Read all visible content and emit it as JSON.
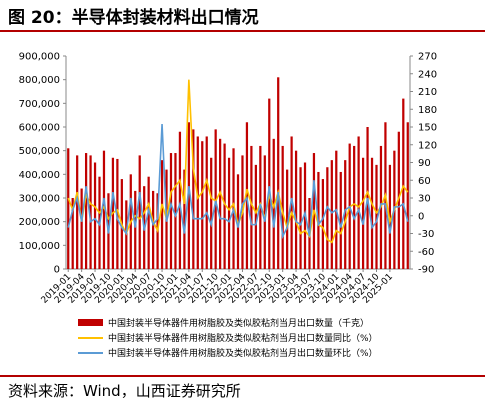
{
  "figure": {
    "title": "图 20：半导体封装材料出口情况",
    "source": "资料来源：Wind，山西证券研究所"
  },
  "colors": {
    "bar": "#c00000",
    "yoy": "#ffc000",
    "mom": "#5b9bd5",
    "rule": "#b30000"
  },
  "chart_data": {
    "type": "bar",
    "grid": false,
    "legend_placement": "bottom",
    "x_tick_labels": [
      "2019-01",
      "2019-04",
      "2019-07",
      "2019-10",
      "2020-01",
      "2020-04",
      "2020-07",
      "2020-10",
      "2021-01",
      "2021-04",
      "2021-07",
      "2021-10",
      "2022-01",
      "2022-04",
      "2022-07",
      "2022-10",
      "2023-01",
      "2023-04",
      "2023-07",
      "2023-10",
      "2024-01",
      "2024-04",
      "2024-07",
      "2024-10",
      "2025-01"
    ],
    "y_left": {
      "min": 0,
      "max": 900000,
      "ticks": [
        "0",
        "100,000",
        "200,000",
        "300,000",
        "400,000",
        "500,000",
        "600,000",
        "700,000",
        "800,000",
        "900,000"
      ]
    },
    "y_right": {
      "min": -90,
      "max": 270,
      "ticks": [
        "-90",
        "-60",
        "-30",
        "0",
        "30",
        "60",
        "90",
        "120",
        "150",
        "180",
        "210",
        "240",
        "270"
      ]
    },
    "series": [
      {
        "name": "中国封装半导体器件用树脂胶及类似胶粘剂当月出口数量（千克）",
        "kind": "bar",
        "axis": "left",
        "values": [
          510000,
          300000,
          480000,
          340000,
          490000,
          480000,
          450000,
          390000,
          500000,
          320000,
          470000,
          465000,
          380000,
          290000,
          400000,
          330000,
          480000,
          350000,
          390000,
          330000,
          320000,
          460000,
          420000,
          490000,
          490000,
          580000,
          420000,
          620000,
          590000,
          560000,
          540000,
          560000,
          470000,
          590000,
          550000,
          530000,
          470000,
          510000,
          400000,
          480000,
          620000,
          520000,
          440000,
          520000,
          480000,
          720000,
          550000,
          810000,
          520000,
          420000,
          560000,
          500000,
          430000,
          450000,
          300000,
          490000,
          410000,
          380000,
          430000,
          460000,
          500000,
          410000,
          460000,
          530000,
          520000,
          560000,
          470000,
          600000,
          470000,
          440000,
          520000,
          620000,
          440000,
          500000,
          580000,
          720000,
          620000
        ]
      },
      {
        "name": "中国封装半导体器件用树脂胶及类似胶粘剂当月出口数量同比（%）",
        "kind": "line",
        "axis": "right",
        "values": [
          30,
          10,
          40,
          -10,
          35,
          20,
          15,
          5,
          15,
          -5,
          5,
          10,
          -15,
          -30,
          -10,
          0,
          -5,
          5,
          20,
          -10,
          -25,
          20,
          -5,
          40,
          50,
          60,
          20,
          230,
          80,
          30,
          40,
          60,
          30,
          25,
          40,
          20,
          10,
          20,
          -15,
          5,
          45,
          20,
          5,
          20,
          -5,
          35,
          15,
          40,
          5,
          -20,
          5,
          -10,
          -30,
          -25,
          -35,
          10,
          -15,
          -20,
          -40,
          -45,
          -25,
          -30,
          -10,
          15,
          20,
          15,
          25,
          40,
          20,
          5,
          15,
          35,
          -10,
          10,
          30,
          50,
          40
        ]
      },
      {
        "name": "中国封装半导体器件用树脂胶及类似胶粘剂当月出口数量环比（%）",
        "kind": "line",
        "axis": "right",
        "values": [
          -20,
          10,
          30,
          -10,
          50,
          -10,
          -5,
          -15,
          30,
          -30,
          40,
          -5,
          -20,
          -30,
          30,
          -20,
          40,
          -25,
          10,
          -15,
          -5,
          155,
          -10,
          20,
          0,
          20,
          -30,
          50,
          -5,
          -5,
          -5,
          5,
          -15,
          25,
          -5,
          -5,
          -10,
          10,
          -20,
          20,
          30,
          -15,
          -15,
          20,
          -10,
          50,
          -20,
          40,
          -35,
          -20,
          30,
          -10,
          -15,
          5,
          -35,
          60,
          -15,
          -5,
          15,
          5,
          10,
          -20,
          10,
          15,
          -5,
          10,
          -15,
          30,
          -20,
          -10,
          20,
          20,
          -30,
          15,
          15,
          20,
          -10
        ]
      }
    ]
  }
}
